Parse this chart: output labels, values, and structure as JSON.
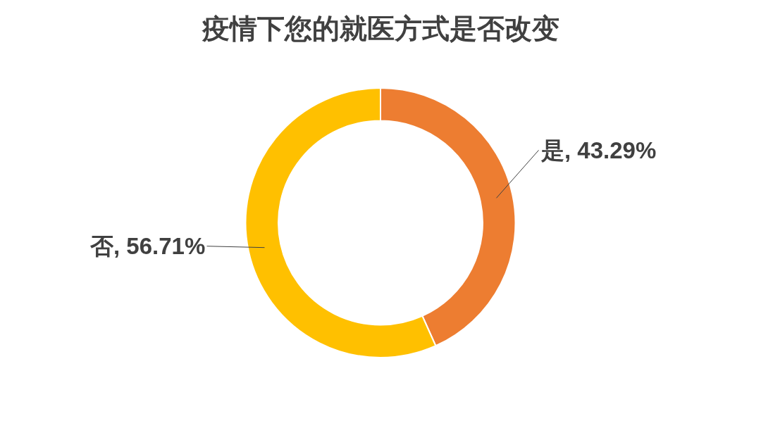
{
  "chart_data": {
    "type": "donut",
    "title": "疫情下您的就医方式是否改变",
    "categories": [
      "是",
      "否"
    ],
    "values": [
      43.29,
      56.71
    ],
    "colors": [
      "#ed7d31",
      "#ffc000"
    ],
    "value_labels": [
      "43.29%",
      "56.71%"
    ]
  }
}
